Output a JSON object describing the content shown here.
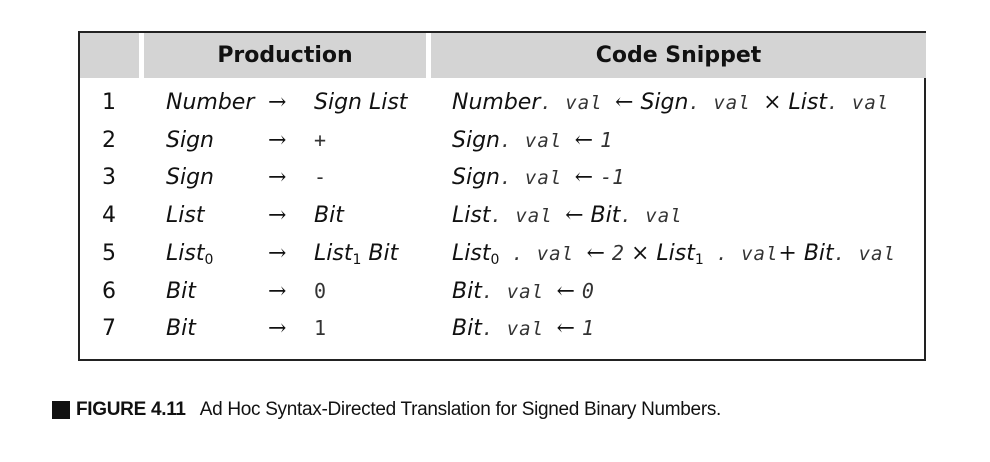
{
  "table": {
    "headers": {
      "number": "",
      "production": "Production",
      "code": "Code Snippet"
    },
    "rows": [
      {
        "num": "1",
        "lhs": "Number",
        "arrow": "→",
        "rhs": "Sign List",
        "code": [
          [
            "it",
            "Number"
          ],
          [
            "tt",
            ". val "
          ],
          [
            "op",
            "← "
          ],
          [
            "it",
            "Sign"
          ],
          [
            "tt",
            ". val "
          ],
          [
            "op",
            "× "
          ],
          [
            "it",
            "List"
          ],
          [
            "tt",
            ". val"
          ]
        ]
      },
      {
        "num": "2",
        "lhs": "Sign",
        "arrow": "→",
        "rhs": "+",
        "code": [
          [
            "it",
            "Sign"
          ],
          [
            "tt",
            ". val "
          ],
          [
            "op",
            "← "
          ],
          [
            "lit",
            "1"
          ]
        ]
      },
      {
        "num": "3",
        "lhs": "Sign",
        "arrow": "→",
        "rhs": "-",
        "code": [
          [
            "it",
            "Sign"
          ],
          [
            "tt",
            ". val "
          ],
          [
            "op",
            "← "
          ],
          [
            "lit",
            "-1"
          ]
        ]
      },
      {
        "num": "4",
        "lhs": "List",
        "arrow": "→",
        "rhs": "Bit",
        "code": [
          [
            "it",
            "List"
          ],
          [
            "tt",
            ". val "
          ],
          [
            "op",
            "← "
          ],
          [
            "it",
            "Bit"
          ],
          [
            "tt",
            ". val"
          ]
        ]
      },
      {
        "num": "5",
        "lhs": "List",
        "lhs_sub": "0",
        "arrow": "→",
        "rhs": "List",
        "rhs_sub": "1",
        "rhs_tail": " Bit",
        "code": [
          [
            "it",
            "List"
          ],
          [
            "sub",
            "0"
          ],
          [
            "tt",
            " . val  "
          ],
          [
            "op",
            "←  "
          ],
          [
            "lit",
            "2"
          ],
          [
            "op",
            " × "
          ],
          [
            "it",
            "List"
          ],
          [
            "sub",
            "1"
          ],
          [
            "tt",
            " . val"
          ],
          [
            "op",
            "+ "
          ],
          [
            "it",
            "Bit"
          ],
          [
            "tt",
            ". val"
          ]
        ]
      },
      {
        "num": "6",
        "lhs": "Bit",
        "arrow": "→",
        "rhs": "0",
        "code": [
          [
            "it",
            "Bit"
          ],
          [
            "tt",
            ". val "
          ],
          [
            "op",
            "← "
          ],
          [
            "lit",
            "0"
          ]
        ]
      },
      {
        "num": "7",
        "lhs": "Bit",
        "arrow": "→",
        "rhs": "1",
        "code": [
          [
            "it",
            "Bit"
          ],
          [
            "tt",
            ". val "
          ],
          [
            "op",
            "← "
          ],
          [
            "lit",
            "1"
          ]
        ]
      }
    ]
  },
  "caption": {
    "label": "FIGURE 4.11",
    "text": "Ad Hoc Syntax-Directed Translation for Signed Binary Numbers."
  }
}
